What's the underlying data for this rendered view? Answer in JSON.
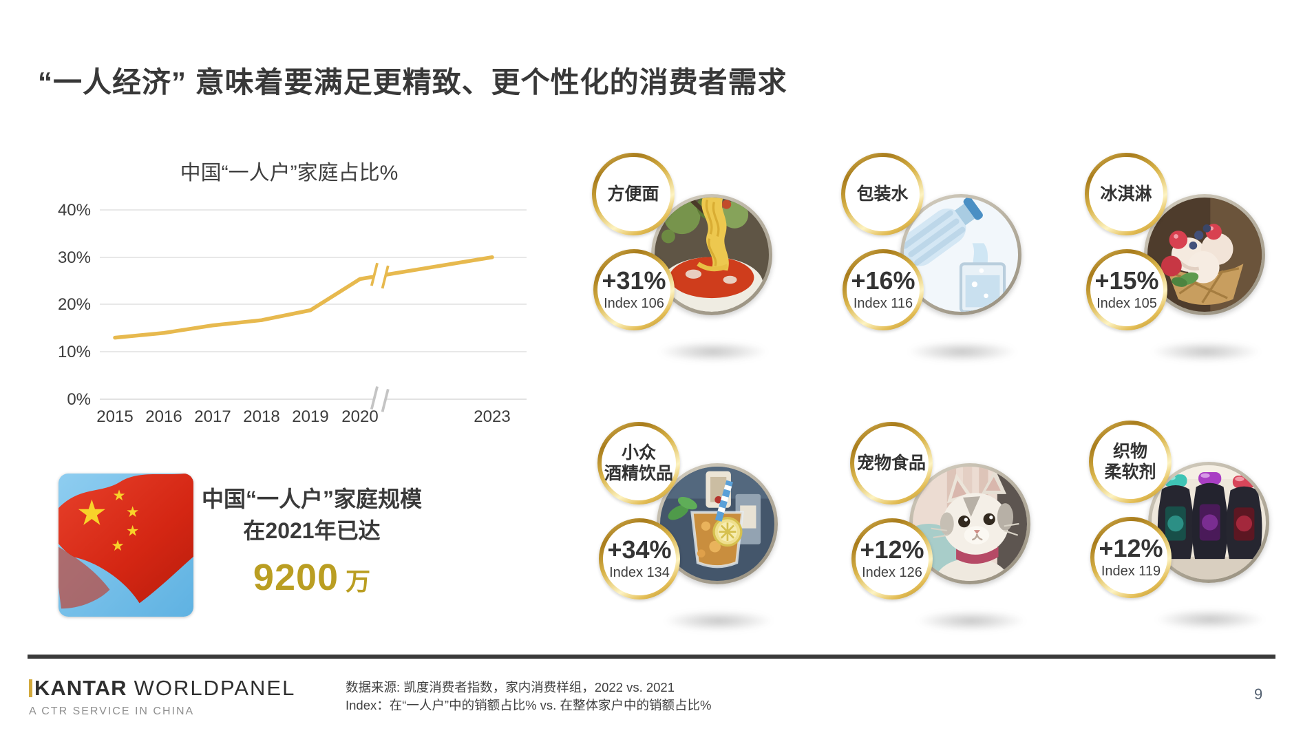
{
  "slide": {
    "title": "“一人经济” 意味着要满足更精致、更个性化的消费者需求",
    "page_number": "9"
  },
  "chart_data": {
    "type": "line",
    "title": "中国“一人户”家庭占比%",
    "x": [
      "2015",
      "2016",
      "2017",
      "2018",
      "2019",
      "2020",
      "2023"
    ],
    "series": [
      {
        "name": "一人户家庭占比",
        "values": [
          13,
          14,
          15.6,
          16.7,
          18.8,
          25.4,
          30
        ]
      }
    ],
    "ylim": [
      0,
      40
    ],
    "yticks": [
      "40%",
      "30%",
      "20%",
      "10%",
      "0%"
    ],
    "grid": true,
    "axis_break": true,
    "axis_break_between": [
      "2020",
      "2023"
    ],
    "line_color": "#E7B94E",
    "grid_color": "#d9d9d9"
  },
  "highlight": {
    "line1": "中国“一人户”家庭规模",
    "line2": "在2021年已达",
    "value": "9200",
    "unit": "万"
  },
  "categories": [
    {
      "label_lines": [
        "方便面"
      ],
      "growth": "+31%",
      "index": "Index 106",
      "photo": "instant-noodles"
    },
    {
      "label_lines": [
        "包装水"
      ],
      "growth": "+16%",
      "index": "Index 116",
      "photo": "bottled-water"
    },
    {
      "label_lines": [
        "冰淇淋"
      ],
      "growth": "+15%",
      "index": "Index 105",
      "photo": "ice-cream"
    },
    {
      "label_lines": [
        "小众",
        "酒精饮品"
      ],
      "growth": "+34%",
      "index": "Index 134",
      "photo": "craft-alcohol"
    },
    {
      "label_lines": [
        "宠物食品"
      ],
      "growth": "+12%",
      "index": "Index 126",
      "photo": "pet-food"
    },
    {
      "label_lines": [
        "织物",
        "柔软剂"
      ],
      "growth": "+12%",
      "index": "Index 119",
      "photo": "fabric-softener"
    }
  ],
  "footer": {
    "brand_bold": "KANTAR",
    "brand_regular": "WORLDPANEL",
    "brand_sub": "A CTR SERVICE IN CHINA",
    "source_line1": "数据来源: 凯度消费者指数，家内消费样组，2022 vs. 2021",
    "source_line2": "Index：在“一人户”中的销额占比% vs. 在整体家户中的销额占比%"
  },
  "colors": {
    "gold_line": "#E7B94E",
    "gold_value": "#BA9E22",
    "dark_text": "#3a3a3a",
    "footer_rule": "#3a3a3a"
  }
}
